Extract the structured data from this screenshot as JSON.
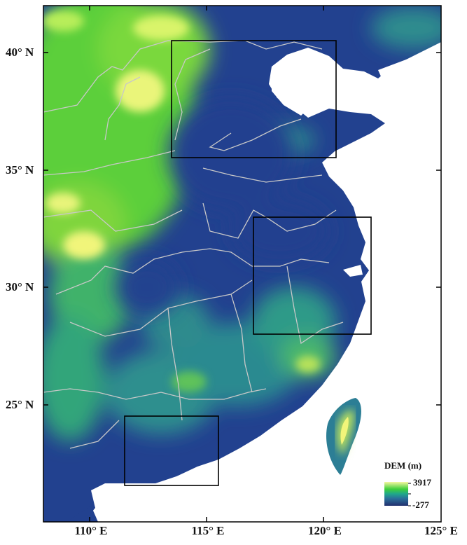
{
  "map": {
    "extent": {
      "lon": [
        108,
        125
      ],
      "lat": [
        20,
        42
      ]
    },
    "lat_ticks": [
      {
        "value": 40,
        "label": "40° N"
      },
      {
        "value": 35,
        "label": "35° N"
      },
      {
        "value": 30,
        "label": "30° N"
      },
      {
        "value": 25,
        "label": "25° N"
      }
    ],
    "lon_ticks": [
      {
        "value": 110,
        "label": "110° E"
      },
      {
        "value": 115,
        "label": "115° E"
      },
      {
        "value": 120,
        "label": "120° E"
      },
      {
        "value": 125,
        "label": "125° E"
      }
    ],
    "study_boxes": [
      {
        "lon": [
          113.5,
          120.5
        ],
        "lat": [
          35.5,
          40.5
        ]
      },
      {
        "lon": [
          117,
          122
        ],
        "lat": [
          28,
          33
        ]
      },
      {
        "lon": [
          111.5,
          115.5
        ],
        "lat": [
          21.5,
          24.5
        ]
      }
    ],
    "colors": {
      "sea": "#ffffff",
      "low": "#1f3f8f",
      "mid": "#21918c",
      "high_green": "#52d13a",
      "peak": "#f4f76a",
      "borders": "#c8c8c8",
      "box": "#000000"
    }
  },
  "legend": {
    "title": "DEM (m)",
    "max_label": "3917",
    "min_label": "-277"
  }
}
